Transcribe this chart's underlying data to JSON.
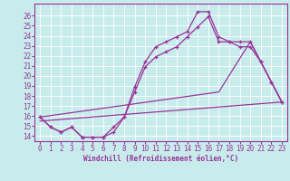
{
  "bg_color": "#c8ecec",
  "grid_color": "#b0d8d8",
  "line_color": "#993399",
  "xlabel": "Windchill (Refroidissement éolien,°C)",
  "xlim": [
    -0.5,
    23.5
  ],
  "ylim": [
    13.5,
    27.2
  ],
  "xticks": [
    0,
    1,
    2,
    3,
    4,
    5,
    6,
    7,
    8,
    9,
    10,
    11,
    12,
    13,
    14,
    15,
    16,
    17,
    18,
    19,
    20,
    21,
    22,
    23
  ],
  "yticks": [
    14,
    15,
    16,
    17,
    18,
    19,
    20,
    21,
    22,
    23,
    24,
    25,
    26
  ],
  "curve1_x": [
    0,
    1,
    2,
    3,
    4,
    5,
    6,
    7,
    8,
    9,
    10,
    11,
    12,
    13,
    14,
    15,
    16,
    17,
    18,
    19,
    20,
    21,
    22,
    23
  ],
  "curve1_y": [
    15.9,
    14.9,
    14.4,
    14.9,
    13.9,
    13.9,
    13.9,
    14.4,
    15.9,
    18.9,
    21.4,
    22.9,
    23.4,
    23.9,
    24.4,
    26.4,
    26.4,
    23.9,
    23.4,
    23.4,
    23.4,
    21.4,
    19.4,
    17.4
  ],
  "curve2_x": [
    0,
    1,
    2,
    3,
    4,
    5,
    6,
    7,
    8,
    9,
    10,
    11,
    12,
    13,
    14,
    15,
    16,
    17,
    18,
    19,
    20,
    21,
    22,
    23
  ],
  "curve2_y": [
    15.9,
    14.9,
    14.4,
    14.9,
    13.9,
    13.9,
    13.9,
    14.9,
    15.9,
    18.4,
    20.9,
    21.9,
    22.4,
    22.9,
    23.9,
    24.9,
    25.9,
    23.4,
    23.4,
    22.9,
    22.9,
    21.4,
    19.4,
    17.4
  ],
  "curve3_x": [
    0,
    17,
    20,
    21,
    23
  ],
  "curve3_y": [
    15.9,
    18.4,
    23.4,
    21.4,
    17.4
  ],
  "curve4_x": [
    0,
    23
  ],
  "curve4_y": [
    15.5,
    17.4
  ]
}
